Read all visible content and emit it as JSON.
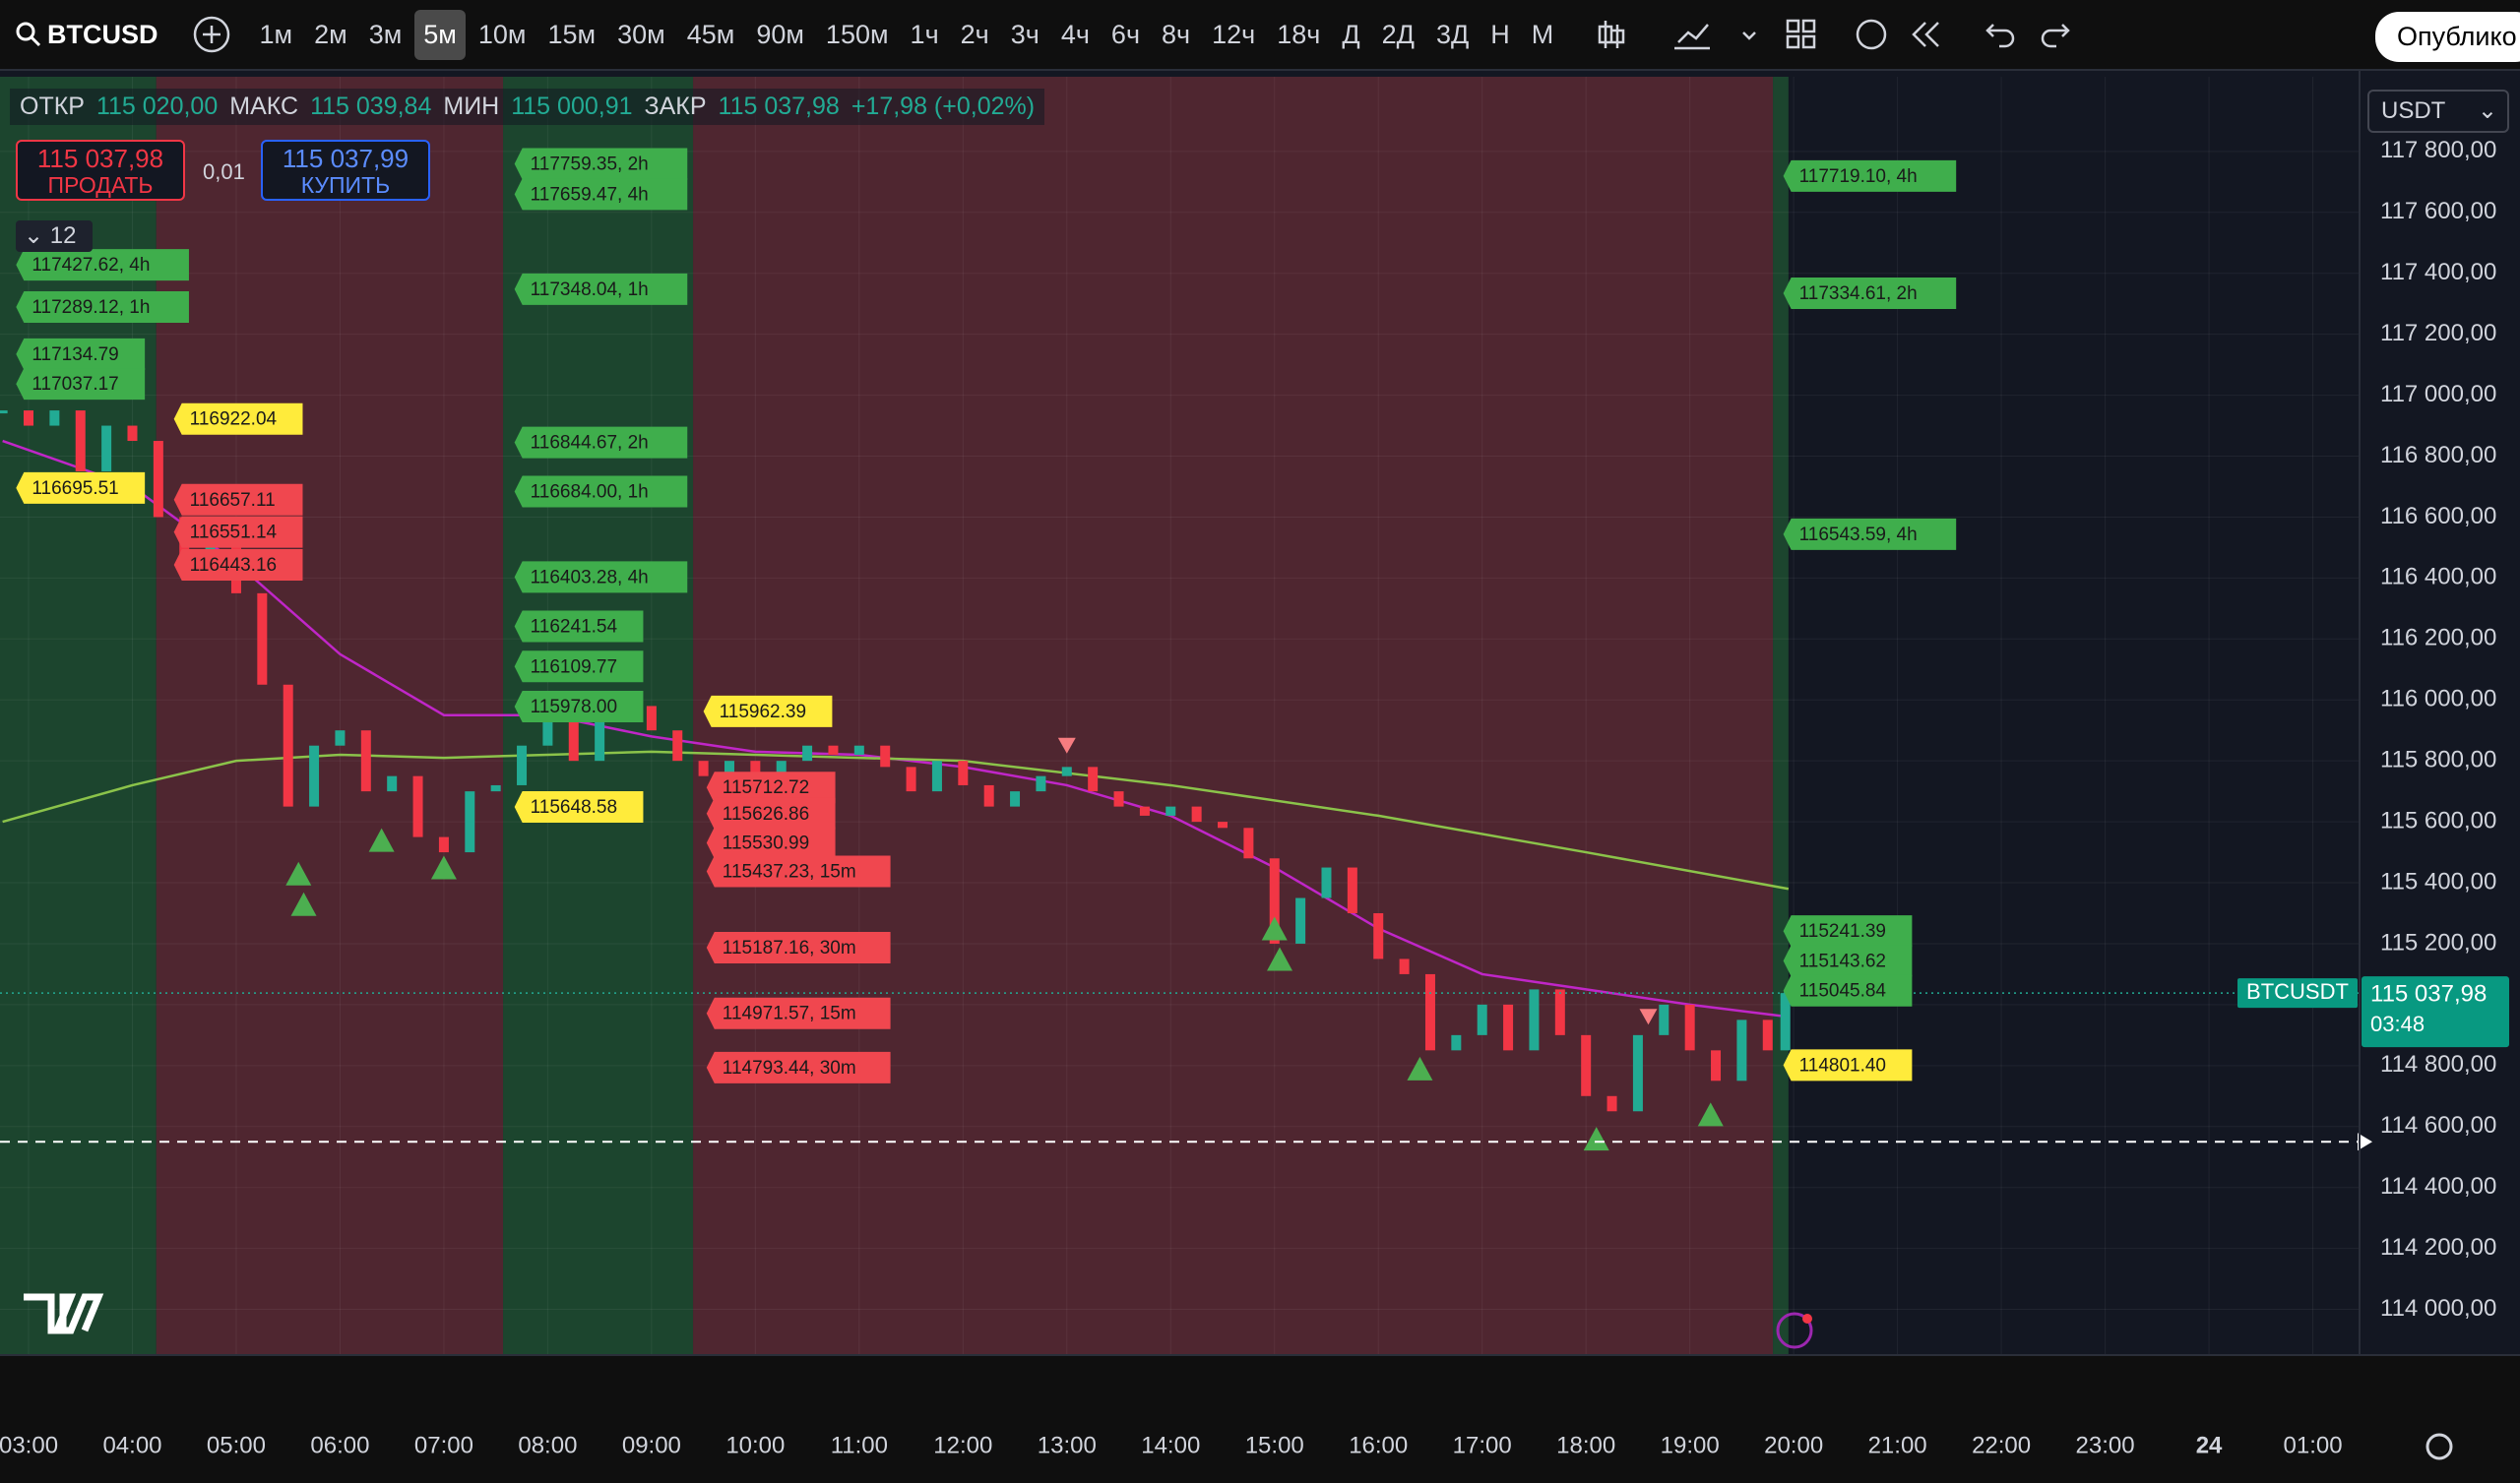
{
  "toolbar": {
    "symbol": "BTCUSD",
    "intervals": [
      "1м",
      "2м",
      "3м",
      "5м",
      "10м",
      "15м",
      "30м",
      "45м",
      "90м",
      "150м",
      "1ч",
      "2ч",
      "3ч",
      "4ч",
      "6ч",
      "8ч",
      "12ч",
      "18ч",
      "Д",
      "2Д",
      "3Д",
      "Н",
      "М"
    ],
    "selected_index": 3,
    "publish": "Опублико"
  },
  "legend": {
    "items": [
      {
        "name": "ОТКР",
        "value": "115 020,00"
      },
      {
        "name": "МАКС",
        "value": "115 039,84"
      },
      {
        "name": "МИН",
        "value": "115 000,91"
      },
      {
        "name": "ЗАКР",
        "value": "115 037,98"
      }
    ],
    "change": "+17,98 (+0,02%)"
  },
  "order_panel": {
    "sell_price": "115 037,98",
    "sell": "ПРОДАТЬ",
    "spread": "0,01",
    "buy_price": "115 037,99",
    "buy": "КУПИТЬ"
  },
  "indicators_count": "12",
  "currency": "USDT",
  "chart": {
    "ylim": [
      113850,
      118045
    ],
    "xlim": [
      2.725,
      25.45
    ],
    "yticks": [
      {
        "value": 117800,
        "label": "117 800,00"
      },
      {
        "value": 117600,
        "label": "117 600,00"
      },
      {
        "value": 117400,
        "label": "117 400,00"
      },
      {
        "value": 117200,
        "label": "117 200,00"
      },
      {
        "value": 117000,
        "label": "117 000,00"
      },
      {
        "value": 116800,
        "label": "116 800,00"
      },
      {
        "value": 116600,
        "label": "116 600,00"
      },
      {
        "value": 116400,
        "label": "116 400,00"
      },
      {
        "value": 116200,
        "label": "116 200,00"
      },
      {
        "value": 116000,
        "label": "116 000,00"
      },
      {
        "value": 115800,
        "label": "115 800,00"
      },
      {
        "value": 115600,
        "label": "115 600,00"
      },
      {
        "value": 115400,
        "label": "115 400,00"
      },
      {
        "value": 115200,
        "label": "115 200,00"
      },
      {
        "value": 115000,
        "label": "115 000,00"
      },
      {
        "value": 114800,
        "label": "114 800,00"
      },
      {
        "value": 114600,
        "label": "114 600,00"
      },
      {
        "value": 114400,
        "label": "114 400,00"
      },
      {
        "value": 114200,
        "label": "114 200,00"
      },
      {
        "value": 114000,
        "label": "114 000,00"
      }
    ],
    "xticks": [
      {
        "value": 3,
        "label": "03:00"
      },
      {
        "value": 4,
        "label": "04:00"
      },
      {
        "value": 5,
        "label": "05:00"
      },
      {
        "value": 6,
        "label": "06:00"
      },
      {
        "value": 7,
        "label": "07:00"
      },
      {
        "value": 8,
        "label": "08:00"
      },
      {
        "value": 9,
        "label": "09:00"
      },
      {
        "value": 10,
        "label": "10:00"
      },
      {
        "value": 11,
        "label": "11:00"
      },
      {
        "value": 12,
        "label": "12:00"
      },
      {
        "value": 13,
        "label": "13:00"
      },
      {
        "value": 14,
        "label": "14:00"
      },
      {
        "value": 15,
        "label": "15:00"
      },
      {
        "value": 16,
        "label": "16:00"
      },
      {
        "value": 17,
        "label": "17:00"
      },
      {
        "value": 18,
        "label": "18:00"
      },
      {
        "value": 19,
        "label": "19:00"
      },
      {
        "value": 20,
        "label": "20:00"
      },
      {
        "value": 21,
        "label": "21:00"
      },
      {
        "value": 22,
        "label": "22:00"
      },
      {
        "value": 23,
        "label": "23:00"
      },
      {
        "value": 24,
        "label": "24"
      },
      {
        "value": 25,
        "label": "01:00"
      }
    ],
    "zones": [
      {
        "start": 2.725,
        "end": 4.23,
        "color": "#1e4a30"
      },
      {
        "start": 4.23,
        "end": 7.57,
        "color": "#572832"
      },
      {
        "start": 7.57,
        "end": 9.4,
        "color": "#1e4a30"
      },
      {
        "start": 9.4,
        "end": 19.8,
        "color": "#572832"
      },
      {
        "start": 19.8,
        "end": 19.95,
        "color": "#1e4a30"
      }
    ],
    "candles": {
      "up_color": "#22ab94",
      "down_color": "#f23645",
      "t": [
        2.75,
        3,
        3.25,
        3.5,
        3.75,
        4,
        4.25,
        4.5,
        4.75,
        5,
        5.25,
        5.5,
        5.75,
        6,
        6.25,
        6.5,
        6.75,
        7,
        7.25,
        7.5,
        7.75,
        8,
        8.25,
        8.5,
        8.75,
        9,
        9.25,
        9.5,
        9.75,
        10,
        10.25,
        10.5,
        10.75,
        11,
        11.25,
        11.5,
        11.75,
        12,
        12.25,
        12.5,
        12.75,
        13,
        13.25,
        13.5,
        13.75,
        14,
        14.25,
        14.5,
        14.75,
        15,
        15.25,
        15.5,
        15.75,
        16,
        16.25,
        16.5,
        16.75,
        17,
        17.25,
        17.5,
        17.75,
        18,
        18.25,
        18.5,
        18.75,
        19,
        19.25,
        19.5,
        19.75,
        19.92
      ],
      "close": [
        116950,
        116900,
        116950,
        116750,
        116900,
        116850,
        116600,
        116450,
        116550,
        116350,
        116050,
        115650,
        115850,
        115900,
        115700,
        115750,
        115550,
        115500,
        115700,
        115720,
        115850,
        115950,
        115800,
        115950,
        115980,
        115900,
        115800,
        115750,
        115800,
        115700,
        115800,
        115850,
        115820,
        115850,
        115780,
        115700,
        115800,
        115720,
        115650,
        115700,
        115750,
        115780,
        115700,
        115650,
        115620,
        115650,
        115600,
        115580,
        115480,
        115200,
        115350,
        115450,
        115300,
        115150,
        115100,
        114850,
        114900,
        115000,
        114850,
        115050,
        114900,
        114700,
        114650,
        114900,
        115000,
        114850,
        114750,
        114950,
        114850,
        115037.98
      ]
    },
    "ma_lines": [
      {
        "color": "#c026c8",
        "t": [
          2.75,
          4,
          5,
          6,
          7,
          8,
          9,
          10,
          11,
          12,
          13,
          14,
          15,
          16,
          17,
          18,
          19,
          19.95
        ],
        "values": [
          116850,
          116700,
          116450,
          116150,
          115950,
          115950,
          115880,
          115830,
          115820,
          115780,
          115720,
          115620,
          115450,
          115250,
          115100,
          115050,
          115000,
          114960
        ]
      },
      {
        "color": "#8bc34a",
        "t": [
          2.75,
          4,
          5,
          6,
          7,
          8,
          9,
          10,
          12,
          14,
          16,
          18,
          19.95
        ],
        "values": [
          115600,
          115720,
          115800,
          115820,
          115810,
          115820,
          115830,
          115820,
          115800,
          115720,
          115620,
          115500,
          115380
        ]
      }
    ],
    "buy_signals": {
      "t": [
        5.6,
        5.65,
        6.4,
        7.0,
        15.0,
        15.05,
        16.4,
        18.1,
        19.2
      ],
      "price": [
        115430,
        115330,
        115540,
        115450,
        115250,
        115150,
        114790,
        114560,
        114640
      ]
    },
    "sell_signals": {
      "t": [
        13.0,
        18.6
      ],
      "price": [
        115850,
        114960
      ]
    },
    "label_colors": {
      "green": "#3fae4c",
      "red": "#f0474f",
      "yellow": "#ffeb3b"
    },
    "labels": [
      {
        "t": 2.88,
        "price": 117427.62,
        "label": "117427.62, 4h",
        "kind": "green"
      },
      {
        "t": 2.88,
        "price": 117289.12,
        "label": "117289.12, 1h",
        "kind": "green"
      },
      {
        "t": 2.88,
        "price": 117134.79,
        "label": "117134.79",
        "kind": "green"
      },
      {
        "t": 2.88,
        "price": 117037.17,
        "label": "117037.17",
        "kind": "green"
      },
      {
        "t": 4.4,
        "price": 116922.04,
        "label": "116922.04",
        "kind": "yellow"
      },
      {
        "t": 2.88,
        "price": 116695.51,
        "label": "116695.51",
        "kind": "yellow"
      },
      {
        "t": 4.4,
        "price": 116657.11,
        "label": "116657.11",
        "kind": "red"
      },
      {
        "t": 4.4,
        "price": 116551.14,
        "label": "116551.14",
        "kind": "red"
      },
      {
        "t": 4.4,
        "price": 116443.16,
        "label": "116443.16",
        "kind": "red"
      },
      {
        "t": 7.68,
        "price": 117759.35,
        "label": "117759.35, 2h",
        "kind": "green"
      },
      {
        "t": 7.68,
        "price": 117659.47,
        "label": "117659.47, 4h",
        "kind": "green"
      },
      {
        "t": 7.68,
        "price": 117348.04,
        "label": "117348.04, 1h",
        "kind": "green"
      },
      {
        "t": 7.68,
        "price": 116844.67,
        "label": "116844.67, 2h",
        "kind": "green"
      },
      {
        "t": 7.68,
        "price": 116684.0,
        "label": "116684.00, 1h",
        "kind": "green"
      },
      {
        "t": 7.68,
        "price": 116403.28,
        "label": "116403.28, 4h",
        "kind": "green"
      },
      {
        "t": 7.68,
        "price": 116241.54,
        "label": "116241.54",
        "kind": "green"
      },
      {
        "t": 7.68,
        "price": 116109.77,
        "label": "116109.77",
        "kind": "green"
      },
      {
        "t": 7.68,
        "price": 115978.0,
        "label": "115978.00",
        "kind": "green"
      },
      {
        "t": 7.68,
        "price": 115648.58,
        "label": "115648.58",
        "kind": "yellow"
      },
      {
        "t": 9.5,
        "price": 115962.39,
        "label": "115962.39",
        "kind": "yellow"
      },
      {
        "t": 9.53,
        "price": 115712.72,
        "label": "115712.72",
        "kind": "red"
      },
      {
        "t": 9.53,
        "price": 115626.86,
        "label": "115626.86",
        "kind": "red"
      },
      {
        "t": 9.53,
        "price": 115530.99,
        "label": "115530.99",
        "kind": "red"
      },
      {
        "t": 9.53,
        "price": 115437.23,
        "label": "115437.23, 15m",
        "kind": "red"
      },
      {
        "t": 9.53,
        "price": 115187.16,
        "label": "115187.16, 30m",
        "kind": "red"
      },
      {
        "t": 9.53,
        "price": 114971.57,
        "label": "114971.57, 15m",
        "kind": "red"
      },
      {
        "t": 9.53,
        "price": 114793.44,
        "label": "114793.44, 30m",
        "kind": "red"
      },
      {
        "t": 19.9,
        "price": 117719.1,
        "label": "117719.10, 4h",
        "kind": "green"
      },
      {
        "t": 19.9,
        "price": 117334.61,
        "label": "117334.61, 2h",
        "kind": "green"
      },
      {
        "t": 19.9,
        "price": 116543.59,
        "label": "116543.59, 4h",
        "kind": "green"
      },
      {
        "t": 19.9,
        "price": 115241.39,
        "label": "115241.39",
        "kind": "green"
      },
      {
        "t": 19.9,
        "price": 115143.62,
        "label": "115143.62",
        "kind": "green"
      },
      {
        "t": 19.9,
        "price": 115045.84,
        "label": "115045.84",
        "kind": "green"
      },
      {
        "t": 19.9,
        "price": 114801.4,
        "label": "114801.40",
        "kind": "yellow"
      }
    ],
    "alert_line": 114550,
    "last_price": 115037.98,
    "price_tag": {
      "symbol": "BTCUSDT",
      "price": "115 037,98",
      "countdown": "03:48"
    }
  }
}
